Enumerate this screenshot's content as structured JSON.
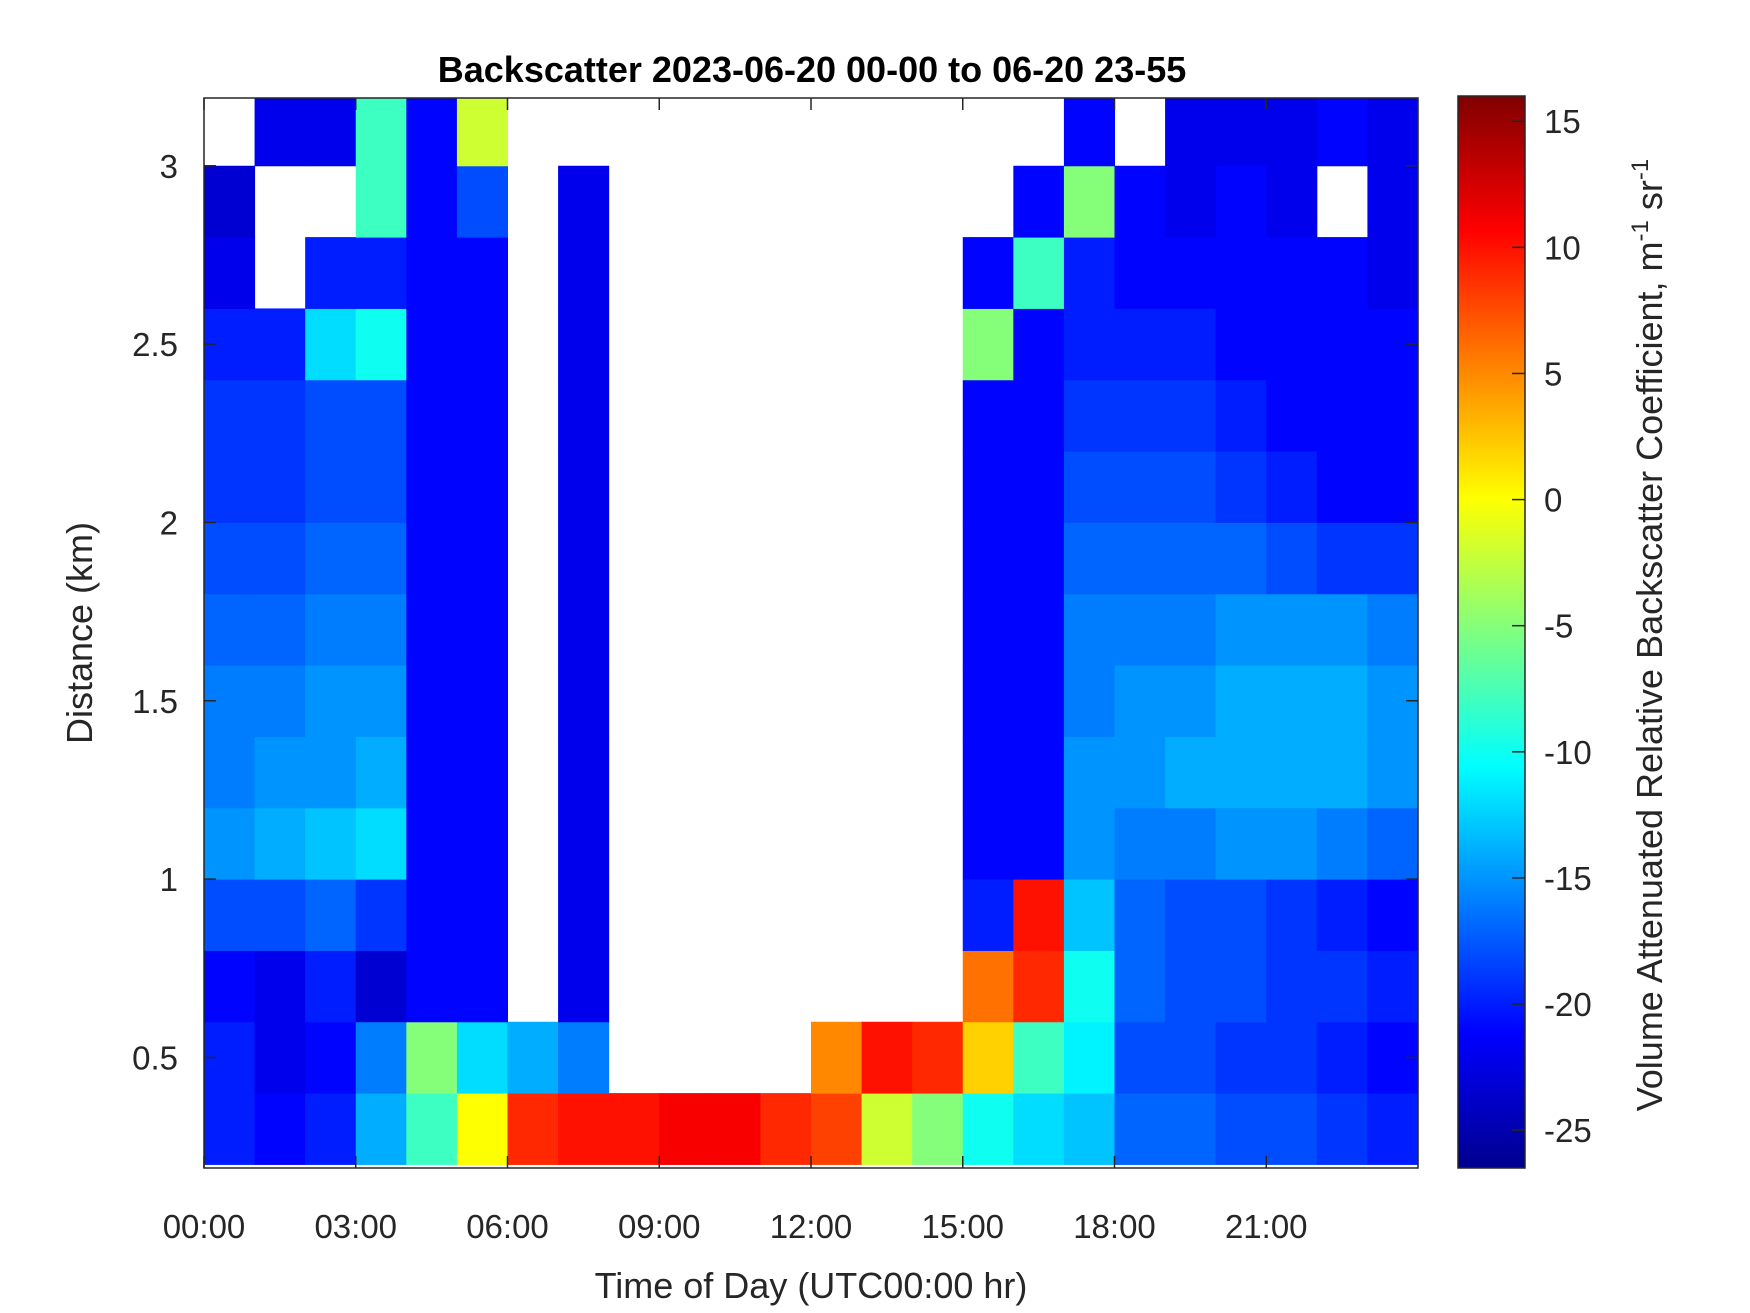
{
  "chart_data": {
    "type": "heatmap",
    "title": "Backscatter 2023-06-20 00-00 to 06-20 23-55",
    "xlabel": "Time of Day (UTC00:00 hr)",
    "ylabel": "Distance (km)",
    "colorbar_label": {
      "main": "Volume Attenuated Relative Backscatter Coefficient, m",
      "sup1": "-1",
      "mid": " sr",
      "sup2": "-1"
    },
    "colormap": "jet",
    "clim": [
      -26.5,
      16
    ],
    "colorbar_ticks": [
      "15",
      "10",
      "5",
      "0",
      "-5",
      "-10",
      "-15",
      "-20",
      "-25"
    ],
    "colorbar_tick_values": [
      15,
      10,
      5,
      0,
      -5,
      -10,
      -15,
      -20,
      -25
    ],
    "xlim_hours": [
      0,
      24
    ],
    "ylim": [
      0.19,
      3.19
    ],
    "x_ticks": [
      "00:00",
      "03:00",
      "06:00",
      "09:00",
      "12:00",
      "15:00",
      "18:00",
      "21:00"
    ],
    "x_tick_hours": [
      0,
      3,
      6,
      9,
      12,
      15,
      18,
      21
    ],
    "y_ticks": [
      "0.5",
      "1",
      "1.5",
      "2",
      "2.5",
      "3"
    ],
    "y_tick_values": [
      0.5,
      1,
      1.5,
      2,
      2.5,
      3
    ],
    "missing_color": "#ffffff",
    "x_hours": [
      0,
      1,
      2,
      3,
      4,
      5,
      6,
      7,
      8,
      9,
      10,
      11,
      12,
      13,
      14,
      15,
      16,
      17,
      18,
      19,
      20,
      21,
      22,
      23
    ],
    "y_km": [
      0.3,
      0.5,
      0.7,
      0.9,
      1.1,
      1.3,
      1.5,
      1.7,
      1.9,
      2.1,
      2.3,
      2.5,
      2.7,
      2.9,
      3.1
    ],
    "values": [
      [
        -20,
        -21,
        -20,
        -14,
        -8,
        0,
        9,
        10,
        10,
        11,
        11,
        9,
        8,
        -2,
        -5,
        -10,
        -12,
        -13,
        -17,
        -17,
        -18,
        -18,
        -19,
        -20
      ],
      [
        -20,
        -22,
        -21,
        -16,
        -5,
        -12,
        -14,
        -16,
        null,
        null,
        null,
        null,
        5,
        10,
        9,
        2,
        -8,
        -11,
        -18,
        -18,
        -19,
        -19,
        -20,
        -21
      ],
      [
        -21,
        -22,
        -20,
        -23,
        -21,
        -21,
        null,
        -22,
        null,
        null,
        null,
        null,
        null,
        null,
        null,
        6,
        9,
        -10,
        -17,
        -18,
        -18,
        -19,
        -19,
        -20
      ],
      [
        -18,
        -18,
        -17,
        -19,
        -21,
        -21,
        null,
        -22,
        null,
        null,
        null,
        null,
        null,
        null,
        null,
        -20,
        10,
        -13,
        -17,
        -18,
        -18,
        -19,
        -20,
        -21
      ],
      [
        -15,
        -14,
        -13,
        -12,
        -21,
        -21,
        null,
        -22,
        null,
        null,
        null,
        null,
        null,
        null,
        null,
        -21,
        -21,
        -15,
        -16,
        -16,
        -15,
        -15,
        -16,
        -17
      ],
      [
        -16,
        -15,
        -15,
        -14,
        -21,
        -21,
        null,
        -22,
        null,
        null,
        null,
        null,
        null,
        null,
        null,
        -21,
        -21,
        -15,
        -15,
        -14,
        -14,
        -14,
        -14,
        -15
      ],
      [
        -16,
        -16,
        -15,
        -15,
        -21,
        -21,
        null,
        -22,
        null,
        null,
        null,
        null,
        null,
        null,
        null,
        -21,
        -21,
        -16,
        -15,
        -15,
        -14,
        -14,
        -14,
        -15
      ],
      [
        -17,
        -17,
        -16,
        -16,
        -21,
        -21,
        null,
        -22,
        null,
        null,
        null,
        null,
        null,
        null,
        null,
        -21,
        -21,
        -16,
        -16,
        -16,
        -15,
        -15,
        -15,
        -16
      ],
      [
        -18,
        -18,
        -17,
        -17,
        -21,
        -21,
        null,
        -22,
        null,
        null,
        null,
        null,
        null,
        null,
        null,
        -21,
        -21,
        -17,
        -17,
        -17,
        -17,
        -18,
        -19,
        -19
      ],
      [
        -19,
        -19,
        -18,
        -18,
        -21,
        -21,
        null,
        -22,
        null,
        null,
        null,
        null,
        null,
        null,
        null,
        -21,
        -21,
        -18,
        -18,
        -18,
        -19,
        -20,
        -21,
        -21
      ],
      [
        -19,
        -19,
        -18,
        -18,
        -21,
        -21,
        null,
        -22,
        null,
        null,
        null,
        null,
        null,
        null,
        null,
        -21,
        -21,
        -19,
        -19,
        -19,
        -20,
        -21,
        -21,
        -21
      ],
      [
        -20,
        -20,
        -12,
        -10,
        -21,
        -21,
        null,
        -22,
        null,
        null,
        null,
        null,
        null,
        null,
        null,
        -5,
        -21,
        -20,
        -20,
        -20,
        -21,
        -21,
        -21,
        -21
      ],
      [
        -22,
        null,
        -20,
        -20,
        -21,
        -21,
        null,
        -22,
        null,
        null,
        null,
        null,
        null,
        null,
        null,
        -21,
        -8,
        -20,
        -21,
        -21,
        -21,
        -21,
        -21,
        -22
      ],
      [
        -23,
        null,
        null,
        -8,
        -21,
        -18,
        null,
        -22,
        null,
        null,
        null,
        null,
        null,
        null,
        null,
        null,
        -21,
        -5,
        -21,
        -22,
        -21,
        -22,
        null,
        -22
      ],
      [
        null,
        -22,
        -22,
        -8,
        -21,
        -2,
        null,
        null,
        null,
        null,
        null,
        null,
        null,
        null,
        null,
        null,
        null,
        -21,
        null,
        -22,
        -22,
        -22,
        -21,
        -22
      ]
    ]
  }
}
